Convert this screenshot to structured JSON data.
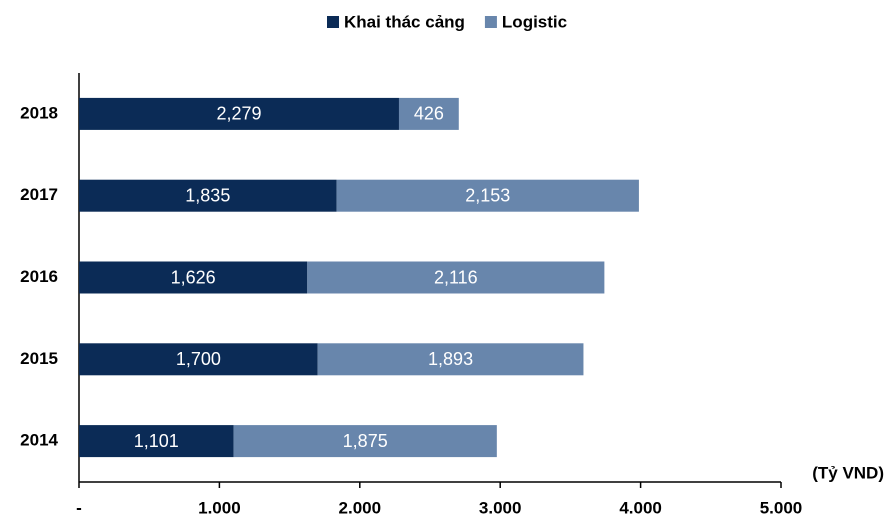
{
  "chart_data": {
    "type": "stacked-barh",
    "categories": [
      "2018",
      "2017",
      "2016",
      "2015",
      "2014"
    ],
    "series": [
      {
        "name": "Khai thác cảng",
        "color": "#0b2b56",
        "values": [
          2279,
          1835,
          1626,
          1700,
          1101
        ],
        "value_labels": [
          "2,279",
          "1,835",
          "1,626",
          "1,700",
          "1,101"
        ]
      },
      {
        "name": "Logistic",
        "color": "#6886ac",
        "values": [
          426,
          2153,
          2116,
          1893,
          1875
        ],
        "value_labels": [
          "426",
          "2,153",
          "2,116",
          "1,893",
          "1,875"
        ]
      }
    ],
    "xlabel": "(Tỷ VND)",
    "xlim": [
      0,
      5000
    ],
    "xticks": [
      {
        "value": 0,
        "label": "-"
      },
      {
        "value": 1000,
        "label": "1.000"
      },
      {
        "value": 2000,
        "label": "2.000"
      },
      {
        "value": 3000,
        "label": "3.000"
      },
      {
        "value": 4000,
        "label": "4.000"
      },
      {
        "value": 5000,
        "label": "5.000"
      }
    ],
    "legend": "top"
  }
}
